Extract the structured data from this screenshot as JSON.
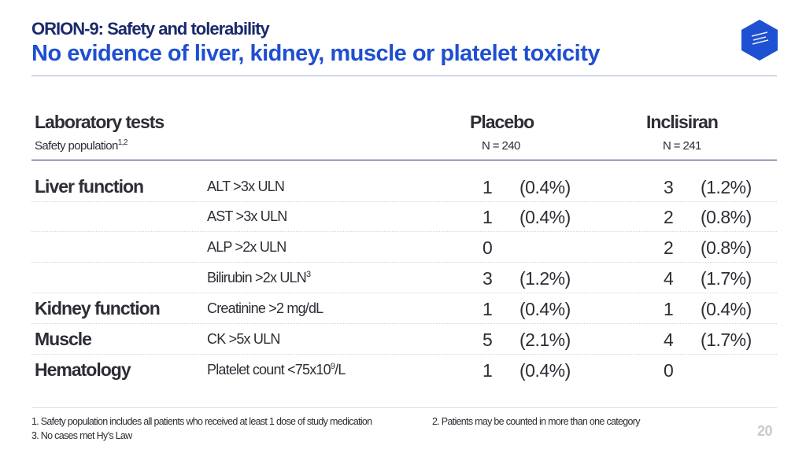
{
  "header": {
    "subtitle": "ORION-9: Safety and tolerability",
    "title": "No evidence of liver, kidney, muscle or platelet toxicity",
    "logo_icon": "brand-cube-icon"
  },
  "table": {
    "col_label": "Laboratory tests",
    "col_label_sub": "Safety population",
    "col_label_sup": "1,2",
    "placebo": {
      "label": "Placebo",
      "n": "N = 240"
    },
    "inclisiran": {
      "label": "Inclisiran",
      "n": "N = 241"
    },
    "rows": [
      {
        "category": "Liver function",
        "test": "ALT >3x ULN",
        "test_sup": "",
        "test_after": "",
        "p_n": "1",
        "p_pct": "(0.4%)",
        "i_n": "3",
        "i_pct": "(1.2%)"
      },
      {
        "category": "",
        "test": "AST >3x ULN",
        "test_sup": "",
        "test_after": "",
        "p_n": "1",
        "p_pct": "(0.4%)",
        "i_n": "2",
        "i_pct": "(0.8%)"
      },
      {
        "category": "",
        "test": "ALP >2x ULN",
        "test_sup": "",
        "test_after": "",
        "p_n": "0",
        "p_pct": "",
        "i_n": "2",
        "i_pct": "(0.8%)"
      },
      {
        "category": "",
        "test": "Bilirubin >2x ULN",
        "test_sup": "3",
        "test_after": "",
        "p_n": "3",
        "p_pct": "(1.2%)",
        "i_n": "4",
        "i_pct": "(1.7%)"
      },
      {
        "category": "Kidney function",
        "test": "Creatinine >2 mg/dL",
        "test_sup": "",
        "test_after": "",
        "p_n": "1",
        "p_pct": "(0.4%)",
        "i_n": "1",
        "i_pct": "(0.4%)"
      },
      {
        "category": "Muscle",
        "test": "CK >5x ULN",
        "test_sup": "",
        "test_after": "",
        "p_n": "5",
        "p_pct": "(2.1%)",
        "i_n": "4",
        "i_pct": "(1.7%)"
      },
      {
        "category": "Hematology",
        "test": "Platelet count <75x10",
        "test_sup": "9",
        "test_after": "/L",
        "p_n": "1",
        "p_pct": "(0.4%)",
        "i_n": "0",
        "i_pct": ""
      }
    ]
  },
  "footnotes": {
    "f1": "1. Safety population includes all patients who received at least 1 dose of study medication",
    "f2": "2. Patients may be counted in more than one category",
    "f3": "3. No cases met Hy’s Law"
  },
  "page_number": "20",
  "colors": {
    "title_blue": "#1f4fd0",
    "navy": "#1b2a6b",
    "logo_blue": "#1e50d2"
  }
}
